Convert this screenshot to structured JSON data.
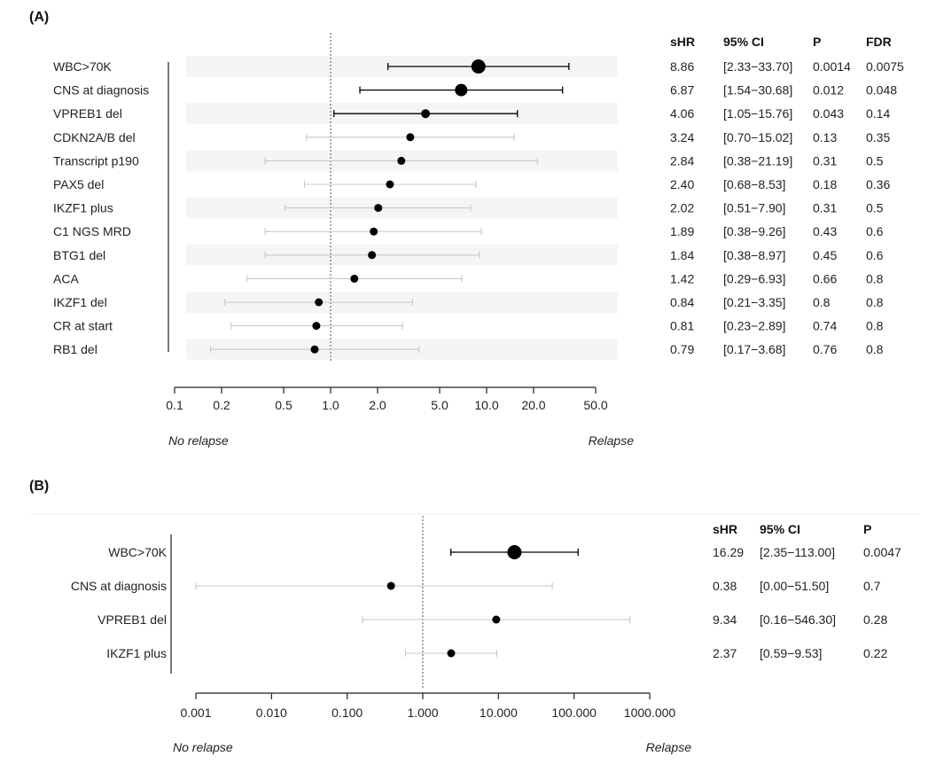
{
  "chart_data": [
    {
      "type": "forest",
      "panel_label": "(A)",
      "x_scale": "log",
      "xlim": [
        0.1,
        50.0
      ],
      "reference_line": 1.0,
      "x_ticks": [
        "0.1",
        "0.2",
        "0.5",
        "1.0",
        "2.0",
        "5.0",
        "10.0",
        "20.0",
        "50.0"
      ],
      "x_tick_values": [
        0.1,
        0.2,
        0.5,
        1.0,
        2.0,
        5.0,
        10.0,
        20.0,
        50.0
      ],
      "left_direction": "No relapse",
      "right_direction": "Relapse",
      "columns": [
        "sHR",
        "95% CI",
        "P",
        "FDR"
      ],
      "rows": [
        {
          "label": "WBC>70K",
          "estimate": 8.86,
          "lower": 2.33,
          "upper": 33.7,
          "significant": true,
          "cols": [
            "8.86",
            "[2.33−33.70]",
            "0.0014",
            "0.0075"
          ]
        },
        {
          "label": "CNS at diagnosis",
          "estimate": 6.87,
          "lower": 1.54,
          "upper": 30.68,
          "significant": true,
          "cols": [
            "6.87",
            "[1.54−30.68]",
            "0.012",
            "0.048"
          ]
        },
        {
          "label": "VPREB1 del",
          "estimate": 4.06,
          "lower": 1.05,
          "upper": 15.76,
          "significant": true,
          "cols": [
            "4.06",
            "[1.05−15.76]",
            "0.043",
            "0.14"
          ]
        },
        {
          "label": "CDKN2A/B del",
          "estimate": 3.24,
          "lower": 0.7,
          "upper": 15.02,
          "significant": false,
          "cols": [
            "3.24",
            "[0.70−15.02]",
            "0.13",
            "0.35"
          ]
        },
        {
          "label": "Transcript p190",
          "estimate": 2.84,
          "lower": 0.38,
          "upper": 21.19,
          "significant": false,
          "cols": [
            "2.84",
            "[0.38−21.19]",
            "0.31",
            "0.5"
          ]
        },
        {
          "label": "PAX5 del",
          "estimate": 2.4,
          "lower": 0.68,
          "upper": 8.53,
          "significant": false,
          "cols": [
            "2.40",
            "[0.68−8.53]",
            "0.18",
            "0.36"
          ]
        },
        {
          "label": "IKZF1 plus",
          "estimate": 2.02,
          "lower": 0.51,
          "upper": 7.9,
          "significant": false,
          "cols": [
            "2.02",
            "[0.51−7.90]",
            "0.31",
            "0.5"
          ]
        },
        {
          "label": "C1 NGS MRD",
          "estimate": 1.89,
          "lower": 0.38,
          "upper": 9.26,
          "significant": false,
          "cols": [
            "1.89",
            "[0.38−9.26]",
            "0.43",
            "0.6"
          ]
        },
        {
          "label": "BTG1 del",
          "estimate": 1.84,
          "lower": 0.38,
          "upper": 8.97,
          "significant": false,
          "cols": [
            "1.84",
            "[0.38−8.97]",
            "0.45",
            "0.6"
          ]
        },
        {
          "label": "ACA",
          "estimate": 1.42,
          "lower": 0.29,
          "upper": 6.93,
          "significant": false,
          "cols": [
            "1.42",
            "[0.29−6.93]",
            "0.66",
            "0.8"
          ]
        },
        {
          "label": "IKZF1 del",
          "estimate": 0.84,
          "lower": 0.21,
          "upper": 3.35,
          "significant": false,
          "cols": [
            "0.84",
            "[0.21−3.35]",
            "0.8",
            "0.8"
          ]
        },
        {
          "label": "CR at start",
          "estimate": 0.81,
          "lower": 0.23,
          "upper": 2.89,
          "significant": false,
          "cols": [
            "0.81",
            "[0.23−2.89]",
            "0.74",
            "0.8"
          ]
        },
        {
          "label": "RB1 del",
          "estimate": 0.79,
          "lower": 0.17,
          "upper": 3.68,
          "significant": false,
          "cols": [
            "0.79",
            "[0.17−3.68]",
            "0.76",
            "0.8"
          ]
        }
      ]
    },
    {
      "type": "forest",
      "panel_label": "(B)",
      "x_scale": "log",
      "xlim": [
        0.001,
        1000.0
      ],
      "reference_line": 1.0,
      "x_ticks": [
        "0.001",
        "0.010",
        "0.100",
        "1.000",
        "10.000",
        "100.000",
        "1000.000"
      ],
      "x_tick_values": [
        0.001,
        0.01,
        0.1,
        1.0,
        10.0,
        100.0,
        1000.0
      ],
      "left_direction": "No relapse",
      "right_direction": "Relapse",
      "columns": [
        "sHR",
        "95% CI",
        "P"
      ],
      "rows": [
        {
          "label": "WBC>70K",
          "estimate": 16.29,
          "lower": 2.35,
          "upper": 113.0,
          "significant": true,
          "cols": [
            "16.29",
            "[2.35−113.00]",
            "0.0047"
          ]
        },
        {
          "label": "CNS at diagnosis",
          "estimate": 0.38,
          "lower": 0.0,
          "upper": 51.5,
          "significant": false,
          "cols": [
            "0.38",
            "[0.00−51.50]",
            "0.7"
          ]
        },
        {
          "label": "VPREB1 del",
          "estimate": 9.34,
          "lower": 0.16,
          "upper": 546.3,
          "significant": false,
          "cols": [
            "9.34",
            "[0.16−546.30]",
            "0.28"
          ]
        },
        {
          "label": "IKZF1 plus",
          "estimate": 2.37,
          "lower": 0.59,
          "upper": 9.53,
          "significant": false,
          "cols": [
            "2.37",
            "[0.59−9.53]",
            "0.22"
          ]
        }
      ]
    }
  ],
  "colors": {
    "significant_ci": "#000000",
    "nonsignificant_ci": "#c8c8c8",
    "point": "#000000",
    "row_shade": "#f5f5f5",
    "reference_line": "#555555"
  }
}
